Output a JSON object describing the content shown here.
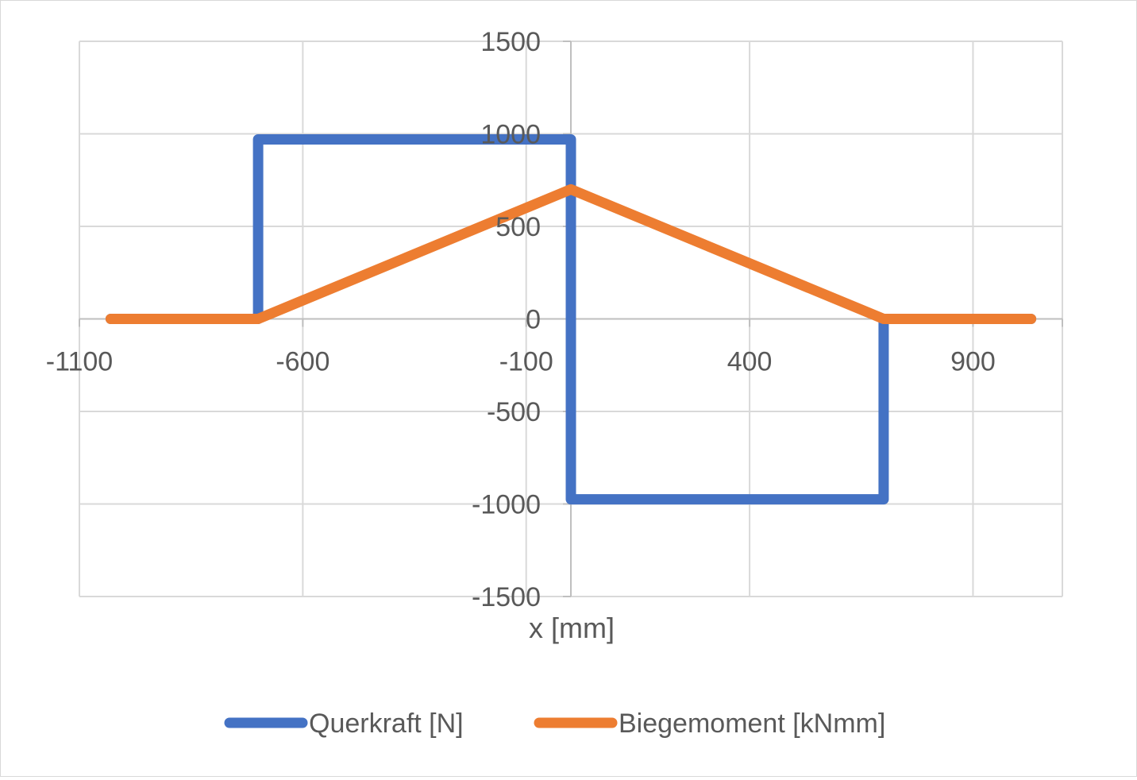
{
  "chart_data": {
    "type": "line",
    "title": "",
    "xlabel": "x [mm]",
    "ylabel": "",
    "xlim": [
      -1100,
      1100
    ],
    "ylim": [
      -1500,
      1500
    ],
    "x_ticks": [
      -1100,
      -600,
      -100,
      400,
      900
    ],
    "y_ticks": [
      -1500,
      -1000,
      -500,
      0,
      500,
      1000,
      1500
    ],
    "x_tick_labels": [
      "-1100",
      "-600",
      "-100",
      "400",
      "900"
    ],
    "y_tick_labels": [
      "-1500",
      "-1000",
      "-500",
      "0",
      "500",
      "1000",
      "1500"
    ],
    "grid": true,
    "legend_position": "bottom",
    "series": [
      {
        "name": "Querkraft [N]",
        "color": "#4472C4",
        "points": [
          [
            -1030,
            0
          ],
          [
            -700,
            0
          ],
          [
            -700,
            970
          ],
          [
            0,
            970
          ],
          [
            0,
            -975
          ],
          [
            700,
            -975
          ],
          [
            700,
            0
          ],
          [
            1030,
            0
          ]
        ]
      },
      {
        "name": "Biegemoment [kNmm]",
        "color": "#ED7D31",
        "points": [
          [
            -1030,
            0
          ],
          [
            -700,
            0
          ],
          [
            0,
            700
          ],
          [
            700,
            0
          ],
          [
            1030,
            0
          ]
        ]
      }
    ]
  }
}
